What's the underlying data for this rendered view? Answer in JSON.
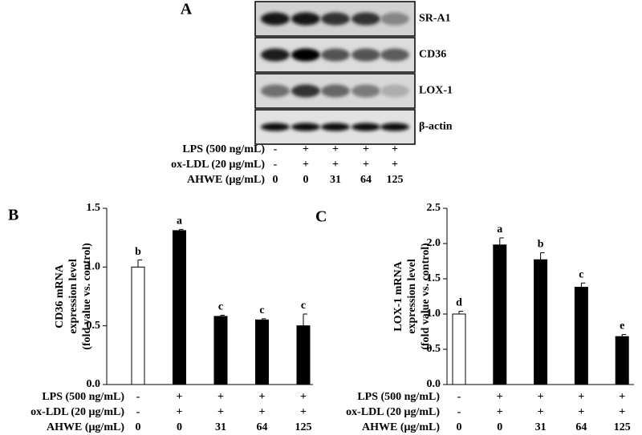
{
  "panel_a": {
    "panel": "A",
    "proteins": [
      "SR-A1",
      "CD36",
      "LOX-1",
      "β-actin"
    ],
    "treatments": [
      {
        "label": "LPS (500 ng/mL)",
        "values": [
          "-",
          "+",
          "+",
          "+",
          "+"
        ]
      },
      {
        "label": "ox-LDL (20 μg/mL)",
        "values": [
          "-",
          "+",
          "+",
          "+",
          "+"
        ]
      },
      {
        "label": "AHWE (μg/mL)",
        "values": [
          "0",
          "0",
          "31",
          "64",
          "125"
        ]
      }
    ]
  },
  "chart_data": [
    {
      "type": "bar",
      "panel": "B",
      "y_label": [
        "CD36 mRNA",
        "expression level",
        "(fold value vs. control)"
      ],
      "values": [
        1.0,
        1.31,
        0.58,
        0.55,
        0.5
      ],
      "errors": [
        0.06,
        0.01,
        0.01,
        0.01,
        0.1
      ],
      "annotations": [
        "b",
        "a",
        "c",
        "c",
        "c"
      ],
      "colors": [
        "#ffffff",
        "#000000",
        "#000000",
        "#000000",
        "#000000"
      ],
      "ylim": [
        0,
        1.5
      ],
      "yticks": [
        {
          "value": 0,
          "label": "0.0"
        },
        0.5,
        {
          "value": 1,
          "label": "1.0"
        },
        1.5
      ],
      "treatments": [
        {
          "label": "LPS (500 ng/mL)",
          "values": [
            "-",
            "+",
            "+",
            "+",
            "+"
          ]
        },
        {
          "label": "ox-LDL (20 μg/mL)",
          "values": [
            "-",
            "+",
            "+",
            "+",
            "+"
          ]
        },
        {
          "label": "AHWE (μg/mL)",
          "values": [
            "0",
            "0",
            "31",
            "64",
            "125"
          ]
        }
      ]
    },
    {
      "type": "bar",
      "panel": "C",
      "y_label": [
        "LOX-1 mRNA",
        "expression level",
        "(fold value vs. control)"
      ],
      "values": [
        1.0,
        1.98,
        1.77,
        1.38,
        0.68
      ],
      "errors": [
        0.04,
        0.1,
        0.1,
        0.06,
        0.03
      ],
      "annotations": [
        "d",
        "a",
        "b",
        "c",
        "e"
      ],
      "colors": [
        "#ffffff",
        "#000000",
        "#000000",
        "#000000",
        "#000000"
      ],
      "ylim": [
        0,
        2.5
      ],
      "yticks": [
        {
          "value": 0,
          "label": "0.0"
        },
        0.5,
        {
          "value": 1,
          "label": "1.0"
        },
        1.5,
        {
          "value": 2,
          "label": "2.0"
        },
        2.5
      ],
      "treatments": [
        {
          "label": "LPS (500 ng/mL)",
          "values": [
            "-",
            "+",
            "+",
            "+",
            "+"
          ]
        },
        {
          "label": "ox-LDL (20 μg/mL)",
          "values": [
            "-",
            "+",
            "+",
            "+",
            "+"
          ]
        },
        {
          "label": "AHWE (μg/mL)",
          "values": [
            "0",
            "0",
            "31",
            "64",
            "125"
          ]
        }
      ]
    }
  ]
}
